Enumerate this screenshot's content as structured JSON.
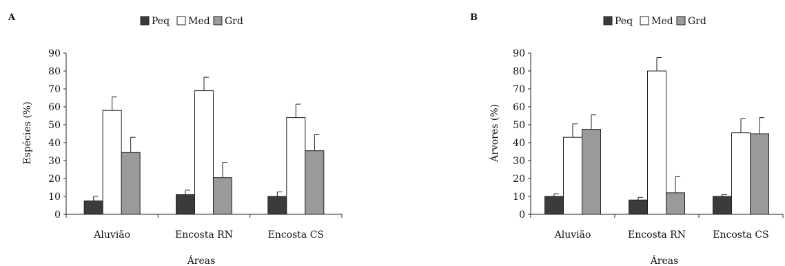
{
  "chart_data": [
    {
      "panel": "A",
      "type": "bar",
      "categories": [
        "Aluvião",
        "Encosta RN",
        "Encosta CS"
      ],
      "series": [
        {
          "name": "Peq",
          "values": [
            7.5,
            11,
            10
          ],
          "errors": [
            2.5,
            2.5,
            2.5
          ]
        },
        {
          "name": "Med",
          "values": [
            58,
            69,
            54
          ],
          "errors": [
            7.5,
            7.5,
            7.5
          ]
        },
        {
          "name": "Grd",
          "values": [
            34.5,
            20.5,
            35.5
          ],
          "errors": [
            8.5,
            8.5,
            9
          ]
        }
      ],
      "xlabel": "Áreas",
      "ylabel": "Espécies (%)",
      "ylim": [
        0,
        90
      ],
      "yticks": [
        0,
        10,
        20,
        30,
        40,
        50,
        60,
        70,
        80,
        90
      ],
      "legend": "top",
      "grid": false
    },
    {
      "panel": "B",
      "type": "bar",
      "categories": [
        "Aluvião",
        "Encosta RN",
        "Encosta CS"
      ],
      "series": [
        {
          "name": "Peq",
          "values": [
            10,
            8,
            10
          ],
          "errors": [
            1.5,
            1.5,
            1
          ]
        },
        {
          "name": "Med",
          "values": [
            43,
            80,
            45.5
          ],
          "errors": [
            7.5,
            7.5,
            8
          ]
        },
        {
          "name": "Grd",
          "values": [
            47.5,
            12,
            45
          ],
          "errors": [
            8,
            9,
            9
          ]
        }
      ],
      "xlabel": "Áreas",
      "ylabel": "Árvores (%)",
      "ylim": [
        0,
        90
      ],
      "yticks": [
        0,
        10,
        20,
        30,
        40,
        50,
        60,
        70,
        80,
        90
      ],
      "legend": "top",
      "grid": false
    }
  ],
  "colors": {
    "Peq": "#3b3b3b",
    "Med": "#ffffff",
    "Grd": "#9a9a9a",
    "axis": "#222222"
  }
}
